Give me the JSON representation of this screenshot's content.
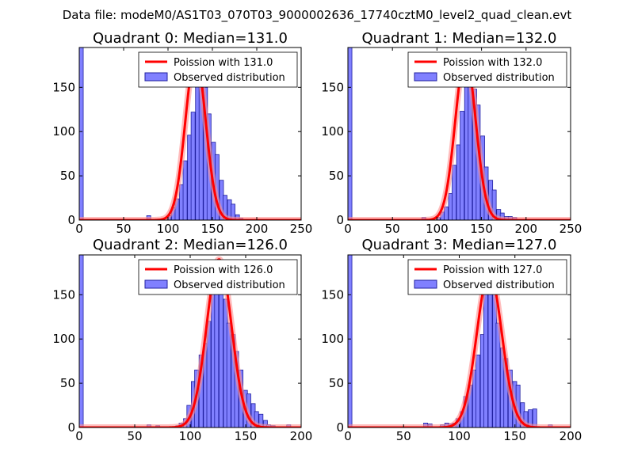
{
  "figure_title": "Data file: modeM0/AS1T03_070T03_9000002636_17740cztM0_level2_quad_clean.evt",
  "colors": {
    "hist_fill": "#8080ff",
    "hist_edge": "#2020a0",
    "poisson_line": "#ff0000",
    "poisson_glow": "#ff9090"
  },
  "chart_data": [
    {
      "type": "bar",
      "title": "Quadrant 0: Median=131.0",
      "xlim": [
        0,
        250
      ],
      "ylim": [
        0,
        195
      ],
      "xticks": [
        0,
        50,
        100,
        150,
        200,
        250
      ],
      "yticks": [
        0,
        50,
        100,
        150
      ],
      "legend": [
        "Poission with 131.0",
        "Observed distribution"
      ],
      "legend_position": "top-right",
      "median": 131.0,
      "poisson_peak": 185,
      "bin_width": 4.5,
      "hist": [
        [
          0,
          195
        ],
        [
          76,
          5
        ],
        [
          99,
          5
        ],
        [
          104,
          14
        ],
        [
          108,
          24
        ],
        [
          113,
          40
        ],
        [
          117,
          67
        ],
        [
          122,
          96
        ],
        [
          126,
          122
        ],
        [
          131,
          160
        ],
        [
          135,
          172
        ],
        [
          140,
          150
        ],
        [
          144,
          120
        ],
        [
          149,
          88
        ],
        [
          153,
          74
        ],
        [
          158,
          45
        ],
        [
          162,
          28
        ],
        [
          167,
          23
        ],
        [
          171,
          18
        ],
        [
          176,
          6
        ],
        [
          180,
          2
        ]
      ]
    },
    {
      "type": "bar",
      "title": "Quadrant 1: Median=132.0",
      "xlim": [
        0,
        250
      ],
      "ylim": [
        0,
        195
      ],
      "xticks": [
        0,
        50,
        100,
        150,
        200,
        250
      ],
      "yticks": [
        0,
        50,
        100,
        150
      ],
      "legend": [
        "Poission with 132.0",
        "Observed distribution"
      ],
      "legend_position": "top-right",
      "median": 132.0,
      "poisson_peak": 185,
      "bin_width": 4.5,
      "hist": [
        [
          0,
          195
        ],
        [
          83,
          3
        ],
        [
          99,
          3
        ],
        [
          104,
          9
        ],
        [
          108,
          15
        ],
        [
          113,
          30
        ],
        [
          117,
          62
        ],
        [
          122,
          85
        ],
        [
          126,
          123
        ],
        [
          131,
          165
        ],
        [
          135,
          170
        ],
        [
          140,
          148
        ],
        [
          144,
          130
        ],
        [
          149,
          95
        ],
        [
          153,
          60
        ],
        [
          158,
          45
        ],
        [
          162,
          34
        ],
        [
          167,
          12
        ],
        [
          171,
          8
        ],
        [
          176,
          4
        ],
        [
          180,
          4
        ],
        [
          185,
          3
        ]
      ]
    },
    {
      "type": "bar",
      "title": "Quadrant 2: Median=126.0",
      "xlim": [
        0,
        200
      ],
      "ylim": [
        0,
        195
      ],
      "xticks": [
        0,
        50,
        100,
        150,
        200
      ],
      "yticks": [
        0,
        50,
        100,
        150
      ],
      "legend": [
        "Poission with 126.0",
        "Observed distribution"
      ],
      "legend_position": "top-right",
      "median": 126.0,
      "poisson_peak": 190,
      "bin_width": 3.6,
      "hist": [
        [
          0,
          195
        ],
        [
          61,
          3
        ],
        [
          69,
          2
        ],
        [
          87,
          2
        ],
        [
          90,
          5
        ],
        [
          94,
          10
        ],
        [
          97,
          25
        ],
        [
          101,
          52
        ],
        [
          104,
          65
        ],
        [
          108,
          82
        ],
        [
          112,
          95
        ],
        [
          115,
          120
        ],
        [
          119,
          158
        ],
        [
          122,
          162
        ],
        [
          126,
          155
        ],
        [
          130,
          145
        ],
        [
          133,
          118
        ],
        [
          137,
          105
        ],
        [
          140,
          86
        ],
        [
          144,
          65
        ],
        [
          148,
          42
        ],
        [
          151,
          38
        ],
        [
          155,
          27
        ],
        [
          158,
          18
        ],
        [
          162,
          15
        ],
        [
          166,
          8
        ],
        [
          169,
          3
        ],
        [
          173,
          2
        ],
        [
          187,
          3
        ]
      ]
    },
    {
      "type": "bar",
      "title": "Quadrant 3: Median=127.0",
      "xlim": [
        0,
        200
      ],
      "ylim": [
        0,
        195
      ],
      "xticks": [
        0,
        50,
        100,
        150,
        200
      ],
      "yticks": [
        0,
        50,
        100,
        150
      ],
      "legend": [
        "Poission with 127.0",
        "Observed distribution"
      ],
      "legend_position": "top-right",
      "median": 127.0,
      "poisson_peak": 175,
      "bin_width": 3.6,
      "hist": [
        [
          0,
          195
        ],
        [
          68,
          5
        ],
        [
          72,
          4
        ],
        [
          83,
          3
        ],
        [
          87,
          5
        ],
        [
          90,
          4
        ],
        [
          94,
          5
        ],
        [
          97,
          10
        ],
        [
          101,
          18
        ],
        [
          104,
          35
        ],
        [
          108,
          48
        ],
        [
          112,
          65
        ],
        [
          115,
          82
        ],
        [
          119,
          105
        ],
        [
          122,
          158
        ],
        [
          126,
          160
        ],
        [
          130,
          152
        ],
        [
          133,
          118
        ],
        [
          137,
          90
        ],
        [
          140,
          78
        ],
        [
          144,
          65
        ],
        [
          148,
          52
        ],
        [
          151,
          48
        ],
        [
          155,
          28
        ],
        [
          158,
          18
        ],
        [
          162,
          20
        ],
        [
          166,
          21
        ],
        [
          180,
          3
        ]
      ]
    }
  ]
}
